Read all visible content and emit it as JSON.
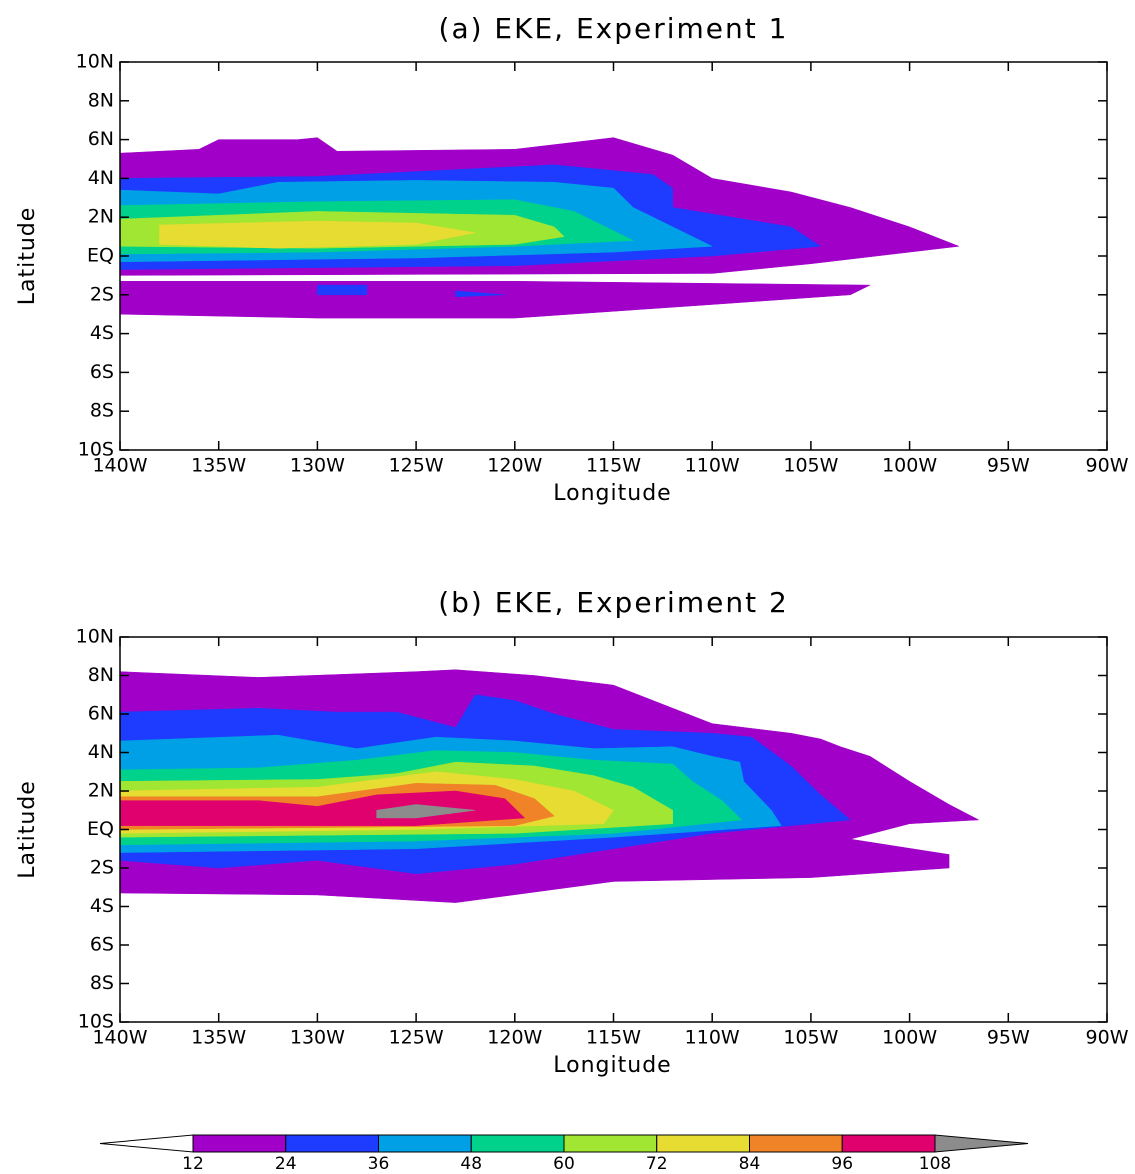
{
  "chart_data": [
    {
      "type": "contour",
      "title": "(a) EKE, Experiment 1",
      "xlabel": "Longitude",
      "ylabel": "Latitude",
      "xlim": [
        -140,
        -90
      ],
      "ylim": [
        -10,
        10
      ],
      "xticks": [
        {
          "value": -140,
          "label": "140W"
        },
        {
          "value": -135,
          "label": "135W"
        },
        {
          "value": -130,
          "label": "130W"
        },
        {
          "value": -125,
          "label": "125W"
        },
        {
          "value": -120,
          "label": "120W"
        },
        {
          "value": -115,
          "label": "115W"
        },
        {
          "value": -110,
          "label": "110W"
        },
        {
          "value": -105,
          "label": "105W"
        },
        {
          "value": -100,
          "label": "100W"
        },
        {
          "value": -95,
          "label": "95W"
        },
        {
          "value": -90,
          "label": "90W"
        }
      ],
      "yticks": [
        {
          "value": -10,
          "label": "10S"
        },
        {
          "value": -8,
          "label": "8S"
        },
        {
          "value": -6,
          "label": "6S"
        },
        {
          "value": -4,
          "label": "4S"
        },
        {
          "value": -2,
          "label": "2S"
        },
        {
          "value": 0,
          "label": "EQ"
        },
        {
          "value": 2,
          "label": "2N"
        },
        {
          "value": 4,
          "label": "4N"
        },
        {
          "value": 6,
          "label": "6N"
        },
        {
          "value": 8,
          "label": "8N"
        },
        {
          "value": 10,
          "label": "10N"
        }
      ],
      "contours": [
        {
          "level": 12,
          "points": [
            [
              -140,
              5.3
            ],
            [
              -136,
              5.5
            ],
            [
              -135,
              6
            ],
            [
              -131,
              6
            ],
            [
              -130,
              6.1
            ],
            [
              -129,
              5.4
            ],
            [
              -120,
              5.5
            ],
            [
              -115,
              6.1
            ],
            [
              -112,
              5.2
            ],
            [
              -110,
              4
            ],
            [
              -106,
              3.3
            ],
            [
              -103,
              2.5
            ],
            [
              -100,
              1.5
            ],
            [
              -97.5,
              0.5
            ],
            [
              -100,
              0.2
            ],
            [
              -105,
              -0.4
            ],
            [
              -110,
              -0.9
            ],
            [
              -140,
              -1.0
            ]
          ]
        },
        {
          "level": 12,
          "points": [
            [
              -140,
              -1.3
            ],
            [
              -120,
              -1.3
            ],
            [
              -102,
              -1.5
            ],
            [
              -103,
              -2
            ],
            [
              -110,
              -2.5
            ],
            [
              -120,
              -3.2
            ],
            [
              -130,
              -3.2
            ],
            [
              -140,
              -3
            ]
          ]
        },
        {
          "level": 24,
          "points": [
            [
              -140,
              4
            ],
            [
              -130,
              4.1
            ],
            [
              -118,
              4.7
            ],
            [
              -113,
              4.2
            ],
            [
              -112,
              3.5
            ],
            [
              -112,
              2.5
            ],
            [
              -106,
              1.5
            ],
            [
              -104.5,
              0.5
            ],
            [
              -110,
              0
            ],
            [
              -120,
              -0.5
            ],
            [
              -140,
              -0.7
            ]
          ]
        },
        {
          "level": 24,
          "points": [
            [
              -130,
              -1.5
            ],
            [
              -127.5,
              -1.5
            ],
            [
              -127.5,
              -2
            ],
            [
              -130,
              -2
            ]
          ]
        },
        {
          "level": 24,
          "points": [
            [
              -123,
              -1.8
            ],
            [
              -120.5,
              -2
            ],
            [
              -123,
              -2.1
            ]
          ]
        },
        {
          "level": 36,
          "points": [
            [
              -140,
              3.4
            ],
            [
              -135,
              3.2
            ],
            [
              -132,
              3.8
            ],
            [
              -125,
              3.9
            ],
            [
              -118,
              3.8
            ],
            [
              -115,
              3.5
            ],
            [
              -114,
              2.5
            ],
            [
              -112,
              1.5
            ],
            [
              -110,
              0.5
            ],
            [
              -115,
              0.2
            ],
            [
              -125,
              -0.1
            ],
            [
              -140,
              -0.3
            ]
          ]
        },
        {
          "level": 48,
          "points": [
            [
              -140,
              2.6
            ],
            [
              -130,
              2.8
            ],
            [
              -120,
              2.9
            ],
            [
              -117,
              2.3
            ],
            [
              -115,
              1.3
            ],
            [
              -114,
              0.8
            ],
            [
              -120,
              0.5
            ],
            [
              -130,
              0.2
            ],
            [
              -140,
              0.1
            ]
          ]
        },
        {
          "level": 60,
          "points": [
            [
              -140,
              1.9
            ],
            [
              -130,
              2.3
            ],
            [
              -120,
              2.1
            ],
            [
              -118,
              1.5
            ],
            [
              -117.5,
              1
            ],
            [
              -120,
              0.6
            ],
            [
              -130,
              0.4
            ],
            [
              -140,
              0.5
            ]
          ]
        },
        {
          "level": 72,
          "points": [
            [
              -138,
              1.6
            ],
            [
              -130,
              1.8
            ],
            [
              -125,
              1.7
            ],
            [
              -122,
              1.2
            ],
            [
              -125,
              0.6
            ],
            [
              -132,
              0.4
            ],
            [
              -138,
              0.6
            ]
          ]
        }
      ]
    },
    {
      "type": "contour",
      "title": "(b) EKE, Experiment 2",
      "xlabel": "Longitude",
      "ylabel": "Latitude",
      "xlim": [
        -140,
        -90
      ],
      "ylim": [
        -10,
        10
      ],
      "xticks": [
        {
          "value": -140,
          "label": "140W"
        },
        {
          "value": -135,
          "label": "135W"
        },
        {
          "value": -130,
          "label": "130W"
        },
        {
          "value": -125,
          "label": "125W"
        },
        {
          "value": -120,
          "label": "120W"
        },
        {
          "value": -115,
          "label": "115W"
        },
        {
          "value": -110,
          "label": "110W"
        },
        {
          "value": -105,
          "label": "105W"
        },
        {
          "value": -100,
          "label": "100W"
        },
        {
          "value": -95,
          "label": "95W"
        },
        {
          "value": -90,
          "label": "90W"
        }
      ],
      "yticks": [
        {
          "value": -10,
          "label": "10S"
        },
        {
          "value": -8,
          "label": "8S"
        },
        {
          "value": -6,
          "label": "6S"
        },
        {
          "value": -4,
          "label": "4S"
        },
        {
          "value": -2,
          "label": "2S"
        },
        {
          "value": 0,
          "label": "EQ"
        },
        {
          "value": 2,
          "label": "2N"
        },
        {
          "value": 4,
          "label": "4N"
        },
        {
          "value": 6,
          "label": "6N"
        },
        {
          "value": 8,
          "label": "8N"
        },
        {
          "value": 10,
          "label": "10N"
        }
      ],
      "contours": [
        {
          "level": 12,
          "points": [
            [
              -140,
              8.2
            ],
            [
              -133,
              7.9
            ],
            [
              -125,
              8.2
            ],
            [
              -123,
              8.3
            ],
            [
              -119,
              8
            ],
            [
              -115,
              7.5
            ],
            [
              -112,
              6.3
            ],
            [
              -110,
              5.5
            ],
            [
              -106,
              5
            ],
            [
              -104.5,
              4.7
            ],
            [
              -103.5,
              4.3
            ],
            [
              -102,
              3.8
            ],
            [
              -100,
              2.5
            ],
            [
              -98,
              1.3
            ],
            [
              -96.5,
              0.5
            ],
            [
              -100,
              0.3
            ],
            [
              -103,
              -0.5
            ],
            [
              -98,
              -1.3
            ],
            [
              -98,
              -2
            ],
            [
              -105,
              -2.5
            ],
            [
              -115,
              -2.7
            ],
            [
              -123,
              -3.8
            ],
            [
              -130,
              -3.4
            ],
            [
              -140,
              -3.3
            ]
          ]
        },
        {
          "level": 24,
          "points": [
            [
              -140,
              6.1
            ],
            [
              -133,
              6.3
            ],
            [
              -129,
              6.1
            ],
            [
              -126,
              6.1
            ],
            [
              -123,
              5.3
            ],
            [
              -122,
              7
            ],
            [
              -120,
              6.7
            ],
            [
              -118,
              6
            ],
            [
              -115,
              5.2
            ],
            [
              -110,
              5
            ],
            [
              -108,
              4.8
            ],
            [
              -106,
              3.3
            ],
            [
              -104.5,
              1.8
            ],
            [
              -103,
              0.5
            ],
            [
              -110,
              -0.2
            ],
            [
              -120,
              -1.8
            ],
            [
              -125,
              -2.3
            ],
            [
              -130,
              -1.6
            ],
            [
              -135,
              -2
            ],
            [
              -140,
              -1.6
            ]
          ]
        },
        {
          "level": 36,
          "points": [
            [
              -140,
              4.6
            ],
            [
              -132,
              4.9
            ],
            [
              -128,
              4.2
            ],
            [
              -124,
              4.8
            ],
            [
              -120,
              4.6
            ],
            [
              -116,
              4.2
            ],
            [
              -112,
              4.3
            ],
            [
              -110,
              3.8
            ],
            [
              -108.6,
              3.5
            ],
            [
              -108.4,
              2.5
            ],
            [
              -107,
              1
            ],
            [
              -106.5,
              0.2
            ],
            [
              -115,
              -0.4
            ],
            [
              -125,
              -1
            ],
            [
              -140,
              -1.2
            ]
          ]
        },
        {
          "level": 48,
          "points": [
            [
              -140,
              3.1
            ],
            [
              -133,
              3.2
            ],
            [
              -128,
              3.6
            ],
            [
              -124,
              4.1
            ],
            [
              -120,
              4
            ],
            [
              -116,
              3.6
            ],
            [
              -112,
              3.4
            ],
            [
              -111,
              2.5
            ],
            [
              -109.5,
              1.5
            ],
            [
              -108.5,
              0.5
            ],
            [
              -115,
              -0.2
            ],
            [
              -125,
              -0.6
            ],
            [
              -140,
              -0.8
            ]
          ]
        },
        {
          "level": 60,
          "points": [
            [
              -140,
              2.5
            ],
            [
              -130,
              2.6
            ],
            [
              -126,
              2.9
            ],
            [
              -123,
              3.5
            ],
            [
              -119,
              3.3
            ],
            [
              -116,
              2.8
            ],
            [
              -114,
              2.2
            ],
            [
              -112,
              1
            ],
            [
              -112,
              0.3
            ],
            [
              -120,
              -0.2
            ],
            [
              -140,
              -0.4
            ]
          ]
        },
        {
          "level": 72,
          "points": [
            [
              -140,
              2
            ],
            [
              -130,
              2.2
            ],
            [
              -124,
              3
            ],
            [
              -120,
              2.6
            ],
            [
              -117,
              2
            ],
            [
              -115,
              1
            ],
            [
              -115.5,
              0.3
            ],
            [
              -125,
              0
            ],
            [
              -140,
              -0.2
            ]
          ]
        },
        {
          "level": 84,
          "points": [
            [
              -140,
              1.7
            ],
            [
              -130,
              1.7
            ],
            [
              -125,
              2.4
            ],
            [
              -121,
              2.3
            ],
            [
              -119,
              1.6
            ],
            [
              -118,
              0.7
            ],
            [
              -120,
              0.2
            ],
            [
              -130,
              0.1
            ],
            [
              -140,
              0
            ]
          ]
        },
        {
          "level": 96,
          "points": [
            [
              -140,
              1.5
            ],
            [
              -133,
              1.5
            ],
            [
              -130,
              1.2
            ],
            [
              -127,
              1.8
            ],
            [
              -123,
              2
            ],
            [
              -120.5,
              1.6
            ],
            [
              -119.5,
              0.6
            ],
            [
              -125,
              0.2
            ],
            [
              -140,
              0.2
            ]
          ]
        },
        {
          "level": 108,
          "points": [
            [
              -127,
              1
            ],
            [
              -125,
              1.3
            ],
            [
              -122,
              1
            ],
            [
              -125,
              0.6
            ],
            [
              -127,
              0.6
            ]
          ]
        }
      ]
    }
  ],
  "colorbar": {
    "levels": [
      12,
      24,
      36,
      48,
      60,
      72,
      84,
      96,
      108
    ],
    "colors": [
      "#ffffff",
      "#a000c8",
      "#1e3cff",
      "#00a0e6",
      "#00d28c",
      "#a0e632",
      "#e6dc32",
      "#f08228",
      "#e0006e",
      "#8c8c8c"
    ]
  }
}
